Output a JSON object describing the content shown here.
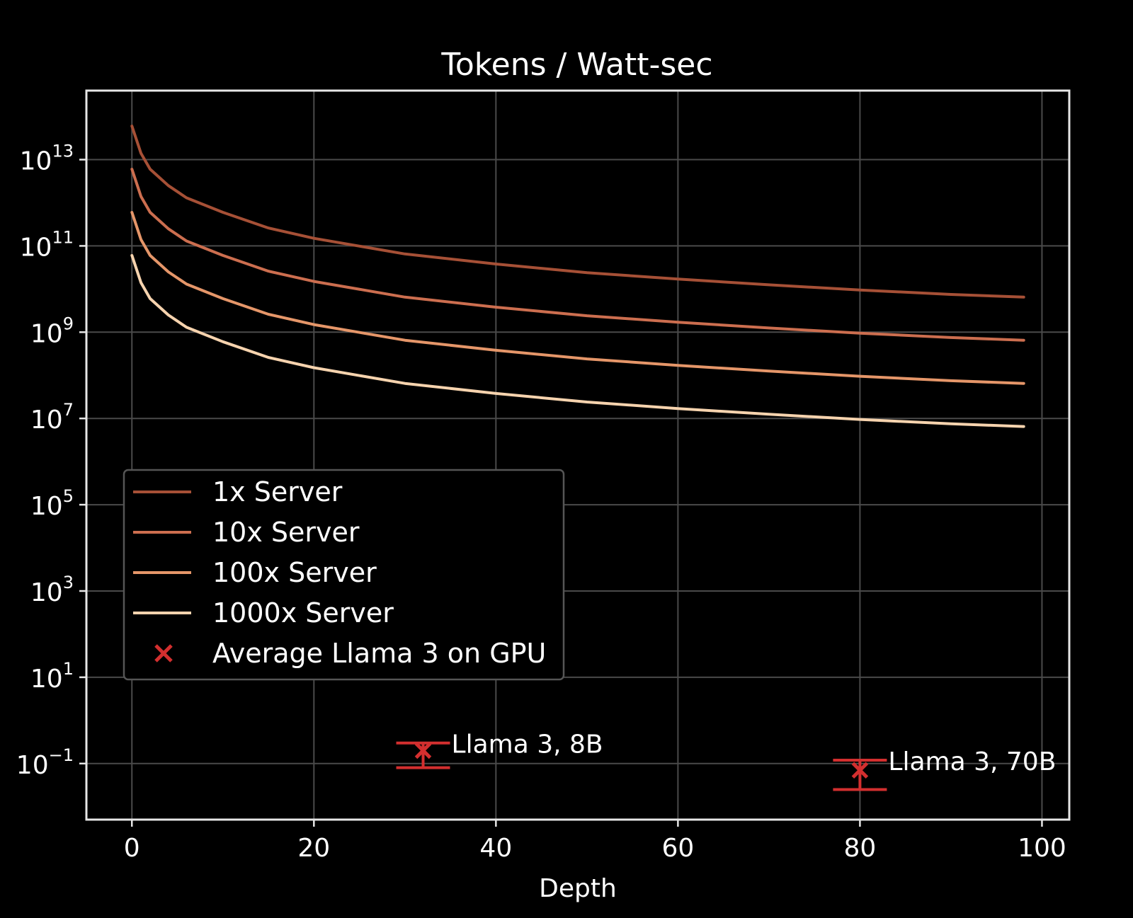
{
  "chart_data": {
    "type": "line",
    "title": "Tokens / Watt-sec",
    "xlabel": "Depth",
    "ylabel": "",
    "xscale": "linear",
    "yscale": "log",
    "xlim": [
      -5,
      103
    ],
    "ylim_log10": [
      -2.3,
      14.6
    ],
    "x_ticks": [
      {
        "value": 0,
        "label": "0"
      },
      {
        "value": 20,
        "label": "20"
      },
      {
        "value": 40,
        "label": "40"
      },
      {
        "value": 60,
        "label": "60"
      },
      {
        "value": 80,
        "label": "80"
      },
      {
        "value": 100,
        "label": "100"
      }
    ],
    "y_ticks": [
      {
        "exp": 13,
        "base": "10",
        "power": "13"
      },
      {
        "exp": 11,
        "base": "10",
        "power": "11"
      },
      {
        "exp": 9,
        "base": "10",
        "power": "9"
      },
      {
        "exp": 7,
        "base": "10",
        "power": "7"
      },
      {
        "exp": 5,
        "base": "10",
        "power": "5"
      },
      {
        "exp": 3,
        "base": "10",
        "power": "3"
      },
      {
        "exp": 1,
        "base": "10",
        "power": "1"
      },
      {
        "exp": -1,
        "base": "10",
        "power": "−1"
      }
    ],
    "grid": true,
    "legend_position": "center-left",
    "series": [
      {
        "name": "1x Server",
        "color": "#a65036",
        "x": [
          0,
          1,
          2,
          4,
          6,
          10,
          15,
          20,
          30,
          40,
          50,
          60,
          70,
          80,
          90,
          98
        ],
        "y": [
          60000000000000.0,
          14000000000000.0,
          6000000000000.0,
          2500000000000.0,
          1300000000000.0,
          600000000000.0,
          260000000000.0,
          150000000000.0,
          65000000000.0,
          38000000000.0,
          24000000000.0,
          17000000000.0,
          12500000000.0,
          9500000000.0,
          7500000000.0,
          6500000000.0
        ]
      },
      {
        "name": "10x Server",
        "color": "#cc6e4f",
        "x": [
          0,
          1,
          2,
          4,
          6,
          10,
          15,
          20,
          30,
          40,
          50,
          60,
          70,
          80,
          90,
          98
        ],
        "y": [
          6000000000000.0,
          1400000000000.0,
          600000000000.0,
          250000000000.0,
          130000000000.0,
          60000000000.0,
          26000000000.0,
          15000000000.0,
          6500000000.0,
          3800000000.0,
          2400000000.0,
          1700000000.0,
          1250000000.0,
          950000000.0,
          750000000.0,
          650000000.0
        ]
      },
      {
        "name": "100x Server",
        "color": "#e59669",
        "x": [
          0,
          1,
          2,
          4,
          6,
          10,
          15,
          20,
          30,
          40,
          50,
          60,
          70,
          80,
          90,
          98
        ],
        "y": [
          600000000000.0,
          140000000000.0,
          60000000000.0,
          25000000000.0,
          13000000000.0,
          6000000000.0,
          2600000000.0,
          1500000000.0,
          650000000.0,
          380000000.0,
          240000000.0,
          170000000.0,
          125000000.0,
          95000000.0,
          75000000.0,
          65000000.0
        ]
      },
      {
        "name": "1000x Server",
        "color": "#f6d3ae",
        "x": [
          0,
          1,
          2,
          4,
          6,
          10,
          15,
          20,
          30,
          40,
          50,
          60,
          70,
          80,
          90,
          98
        ],
        "y": [
          60000000000.0,
          14000000000.0,
          6000000000.0,
          2500000000.0,
          1300000000.0,
          600000000.0,
          260000000.0,
          150000000.0,
          65000000.0,
          38000000.0,
          24000000.0,
          17000000.0,
          12500000.0,
          9500000.0,
          7500000.0,
          6500000.0
        ]
      }
    ],
    "scatter": {
      "name": "Average Llama 3 on GPU",
      "color": "#d32f2f",
      "points": [
        {
          "x": 32,
          "y": 0.2,
          "y_low": 0.08,
          "y_high": 0.3,
          "label": "Llama 3, 8B"
        },
        {
          "x": 80,
          "y": 0.07,
          "y_low": 0.025,
          "y_high": 0.12,
          "label": "Llama 3, 70B"
        }
      ]
    },
    "colors": {
      "background": "#000000",
      "axes": "#e6e6e6",
      "grid": "#4a4a4a",
      "text": "#ffffff"
    }
  }
}
